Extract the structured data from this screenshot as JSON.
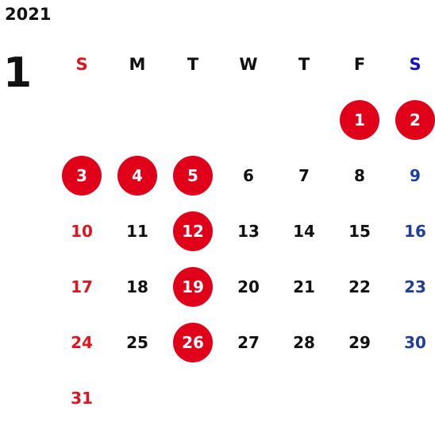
{
  "calendar": {
    "year": "2021",
    "month": "1",
    "weekdays": [
      "S",
      "M",
      "T",
      "W",
      "T",
      "F",
      "S"
    ],
    "first_weekday_index": 5,
    "days": [
      {
        "label": "1",
        "holiday": true
      },
      {
        "label": "2",
        "holiday": true
      },
      {
        "label": "3",
        "holiday": true
      },
      {
        "label": "4",
        "holiday": true
      },
      {
        "label": "5",
        "holiday": true
      },
      {
        "label": "6",
        "holiday": false
      },
      {
        "label": "7",
        "holiday": false
      },
      {
        "label": "8",
        "holiday": false
      },
      {
        "label": "9",
        "holiday": false
      },
      {
        "label": "10",
        "holiday": false
      },
      {
        "label": "11",
        "holiday": false
      },
      {
        "label": "12",
        "holiday": true
      },
      {
        "label": "13",
        "holiday": false
      },
      {
        "label": "14",
        "holiday": false
      },
      {
        "label": "15",
        "holiday": false
      },
      {
        "label": "16",
        "holiday": false
      },
      {
        "label": "17",
        "holiday": false
      },
      {
        "label": "18",
        "holiday": false
      },
      {
        "label": "19",
        "holiday": true
      },
      {
        "label": "20",
        "holiday": false
      },
      {
        "label": "21",
        "holiday": false
      },
      {
        "label": "22",
        "holiday": false
      },
      {
        "label": "23",
        "holiday": false
      },
      {
        "label": "24",
        "holiday": false
      },
      {
        "label": "25",
        "holiday": false
      },
      {
        "label": "26",
        "holiday": true
      },
      {
        "label": "27",
        "holiday": false
      },
      {
        "label": "28",
        "holiday": false
      },
      {
        "label": "29",
        "holiday": false
      },
      {
        "label": "30",
        "holiday": false
      },
      {
        "label": "31",
        "holiday": false
      }
    ]
  },
  "colors": {
    "sunday": "#e0131e",
    "saturday": "#1f3f99",
    "saturday_header": "#1414c8",
    "holiday_circle": "#e0001a",
    "text": "#111111"
  }
}
